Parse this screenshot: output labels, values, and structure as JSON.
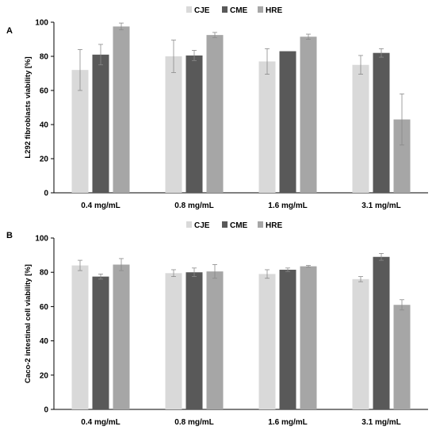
{
  "colors": {
    "CJE": "#d9d9d9",
    "CME": "#595959",
    "HRE": "#a6a6a6",
    "axis": "#000000",
    "error_bar": "#8a8a8a"
  },
  "chart_data": [
    {
      "panel_label": "A",
      "type": "bar",
      "ylabel": "L292 fibroblasts viability [%]",
      "ylim": [
        0,
        100
      ],
      "yticks": [
        "0",
        "20",
        "40",
        "60",
        "80",
        "100"
      ],
      "categories": [
        "0.4 mg/mL",
        "0.8 mg/mL",
        "1.6 mg/mL",
        "3.1 mg/mL"
      ],
      "legend_position": "top-center",
      "grid": false,
      "series": [
        {
          "name": "CJE",
          "values": [
            72,
            80,
            77,
            75
          ],
          "errors": [
            12,
            9.5,
            7.5,
            5.5
          ]
        },
        {
          "name": "CME",
          "values": [
            81,
            80.5,
            83,
            82
          ],
          "errors": [
            6,
            3,
            0,
            2.5
          ]
        },
        {
          "name": "HRE",
          "values": [
            97.5,
            92.5,
            91.5,
            43
          ],
          "errors": [
            2,
            1.5,
            1.5,
            15
          ]
        }
      ]
    },
    {
      "panel_label": "B",
      "type": "bar",
      "ylabel": "Caco-2 intestinal cell viability [%]",
      "ylim": [
        0,
        100
      ],
      "yticks": [
        "0",
        "20",
        "40",
        "60",
        "80",
        "100"
      ],
      "categories": [
        "0.4 mg/mL",
        "0.8 mg/mL",
        "1.6 mg/mL",
        "3.1 mg/mL"
      ],
      "legend_position": "top-center",
      "grid": false,
      "series": [
        {
          "name": "CJE",
          "values": [
            84,
            79.5,
            79,
            76
          ],
          "errors": [
            3,
            2,
            2.5,
            1.5
          ]
        },
        {
          "name": "CME",
          "values": [
            77.5,
            80,
            81.5,
            89
          ],
          "errors": [
            1.5,
            2.5,
            1,
            2
          ]
        },
        {
          "name": "HRE",
          "values": [
            84.5,
            80.5,
            83.5,
            61
          ],
          "errors": [
            3.5,
            4,
            0.5,
            3
          ]
        }
      ]
    }
  ]
}
